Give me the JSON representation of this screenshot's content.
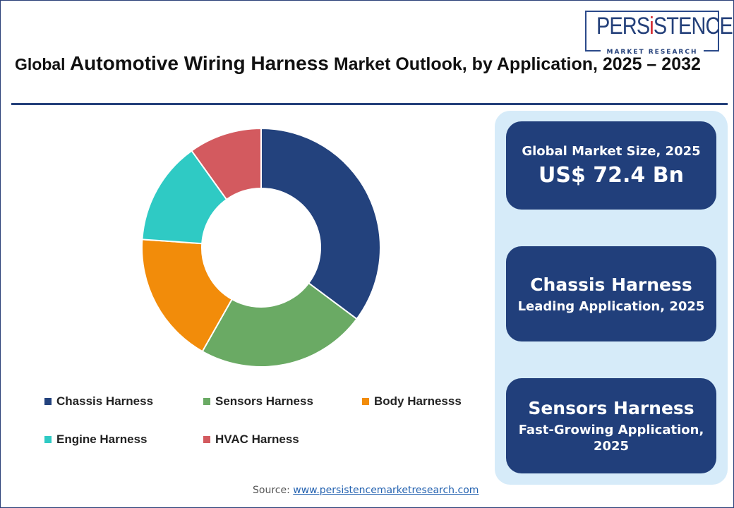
{
  "title": {
    "part1": "Global ",
    "part2": "Automotive Wiring Harness",
    "part3": " Market Outlook, by Application, 2025 – 2032"
  },
  "logo": {
    "text_pre": "PERS",
    "text_i": "i",
    "text_post": "STENCE",
    "tagline": "MARKET RESEARCH"
  },
  "chart_data": {
    "type": "pie",
    "donut": true,
    "categories": [
      "Chassis Harness",
      "Sensors Harness",
      "Body Harnesss",
      "Engine Harness",
      "HVAC Harness"
    ],
    "values": [
      35.2,
      23.0,
      17.9,
      14.0,
      9.9
    ],
    "unit": "% share (estimated)",
    "colors": [
      "#23427d",
      "#6aaa64",
      "#f28c0a",
      "#2fcac4",
      "#d35a5f"
    ],
    "legend_position": "bottom"
  },
  "cards": [
    {
      "line1": "Global Market Size, 2025",
      "line2": "US$ 72.4 Bn"
    },
    {
      "line1": "Chassis Harness",
      "line2": "Leading Application, 2025"
    },
    {
      "line1": "Sensors Harness",
      "line2": "Fast-Growing Application,",
      "line3": "2025"
    }
  ],
  "source": {
    "label": "Source: ",
    "link": "www.persistencemarketresearch.com"
  }
}
